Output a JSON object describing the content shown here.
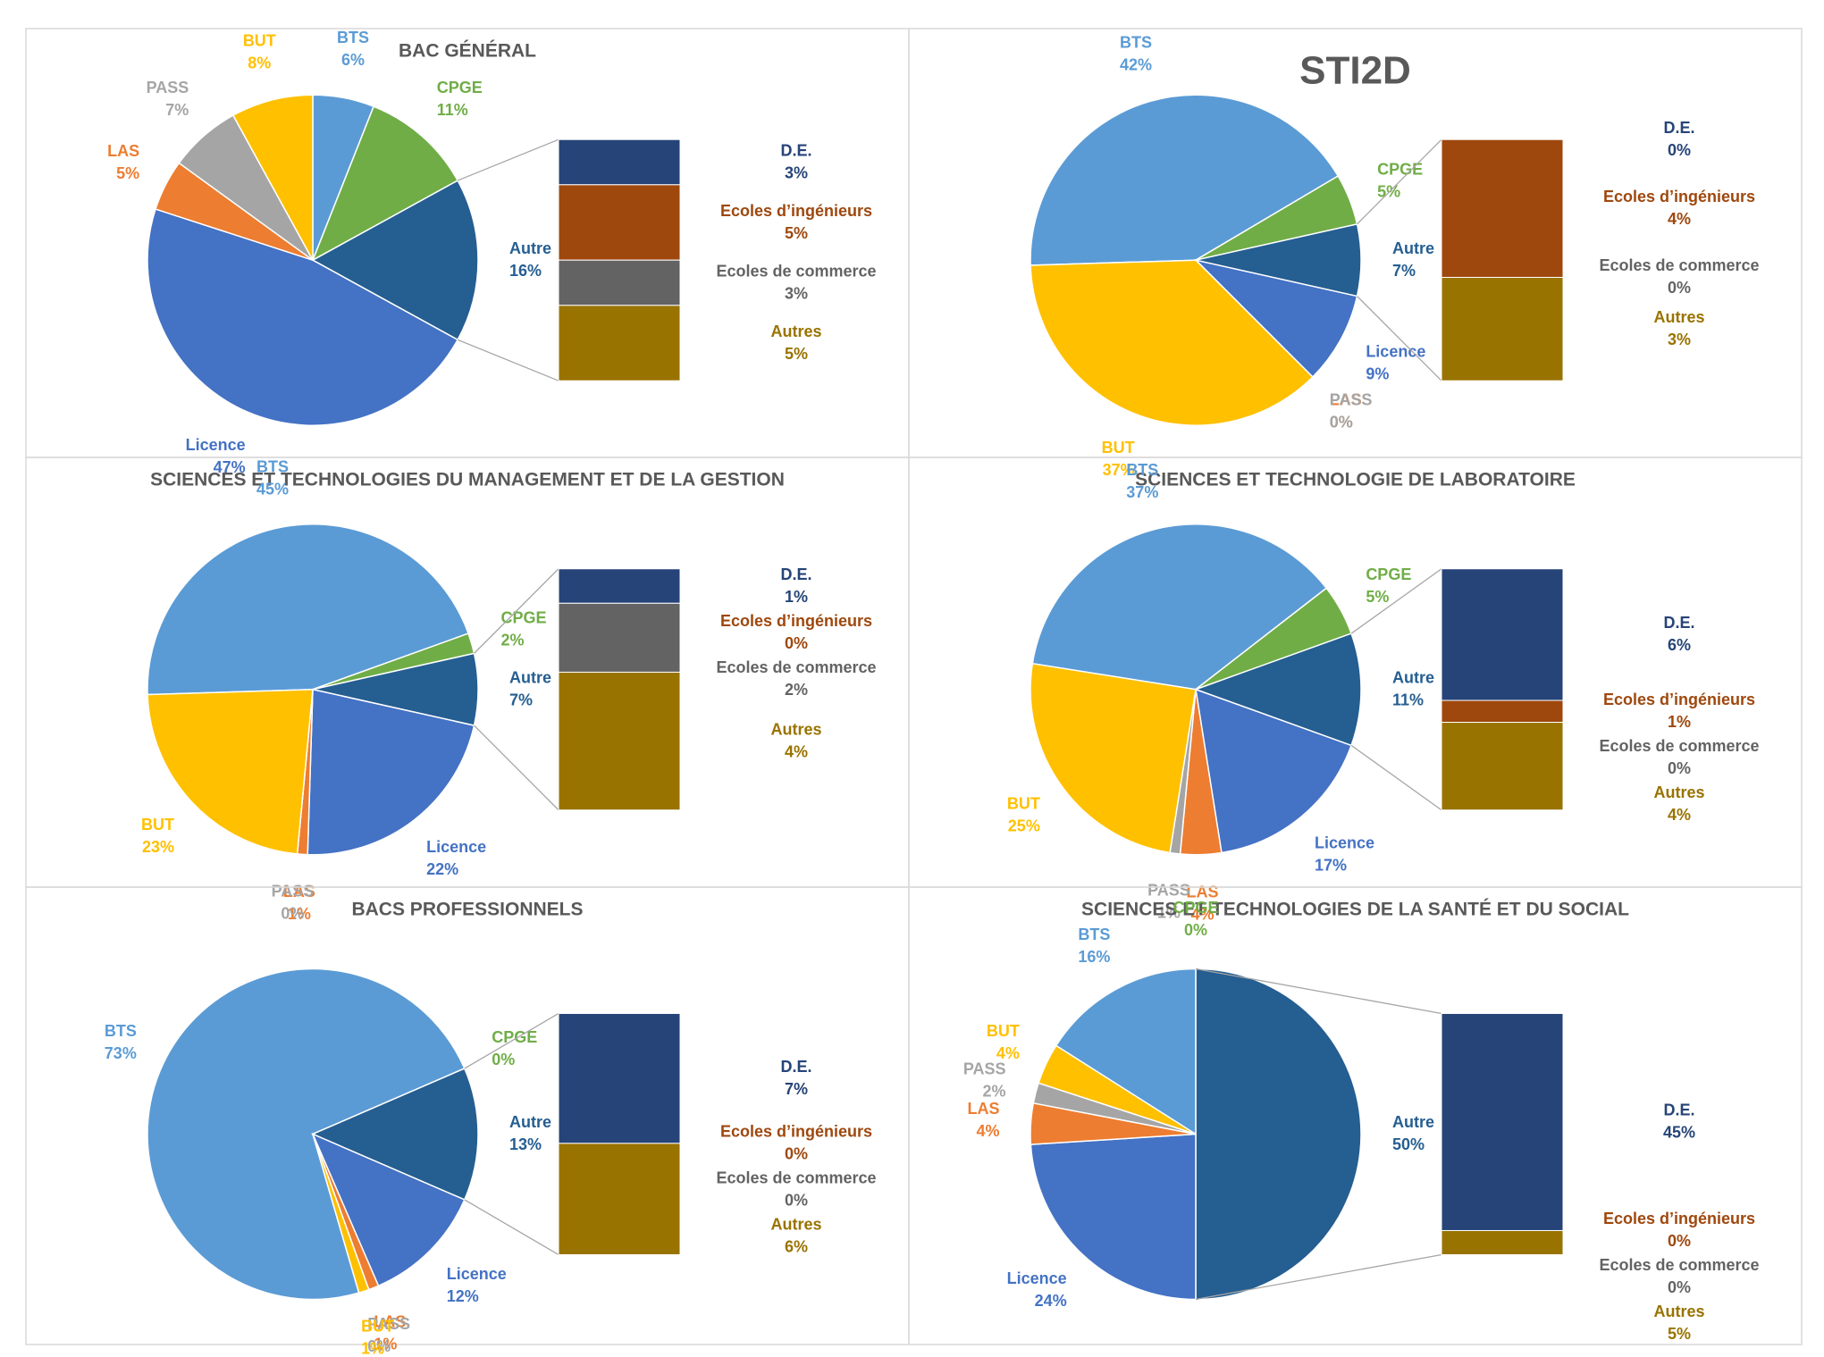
{
  "chart_data": [
    {
      "type": "pie-of-bar",
      "title": "BAC GÉNÉRAL",
      "categories": [
        "BTS",
        "CPGE",
        "Autre",
        "Licence",
        "LAS",
        "PASS",
        "BUT"
      ],
      "values": [
        6,
        11,
        16,
        47,
        5,
        7,
        8
      ],
      "value_labels": [
        "6%",
        "11%",
        "16%",
        "47%",
        "5%",
        "7%",
        "8%"
      ],
      "colors": [
        "#5b9bd5",
        "#70ad47",
        "#255e91",
        "#4472c4",
        "#ed7d31",
        "#a5a5a5",
        "#ffc000"
      ],
      "bar_categories": [
        "D.E.",
        "Ecoles d’ingénieurs",
        "Ecoles de commerce",
        "Autres"
      ],
      "bar_values": [
        3,
        5,
        3,
        5
      ],
      "bar_value_labels": [
        "3%",
        "5%",
        "3%",
        "5%"
      ],
      "bar_colors": [
        "#264478",
        "#9e480e",
        "#636363",
        "#997300"
      ]
    },
    {
      "type": "pie-of-bar",
      "title": "STI2D",
      "title_color": "#ff0000",
      "categories": [
        "BTS",
        "CPGE",
        "Autre",
        "Licence",
        "LAS",
        "PASS",
        "BUT"
      ],
      "values": [
        42,
        5,
        7,
        9,
        0,
        0,
        37
      ],
      "value_labels": [
        "42%",
        "5%",
        "7%",
        "9%",
        "0%",
        "0%",
        "37%"
      ],
      "colors": [
        "#5b9bd5",
        "#70ad47",
        "#255e91",
        "#4472c4",
        "#ed7d31",
        "#a5a5a5",
        "#ffc000"
      ],
      "bar_categories": [
        "D.E.",
        "Ecoles d’ingénieurs",
        "Ecoles de commerce",
        "Autres"
      ],
      "bar_values": [
        0,
        4,
        0,
        3
      ],
      "bar_value_labels": [
        "0%",
        "4%",
        "0%",
        "3%"
      ],
      "bar_colors": [
        "#264478",
        "#9e480e",
        "#636363",
        "#997300"
      ]
    },
    {
      "type": "pie-of-bar",
      "title": "SCIENCES ET TECHNOLOGIES DU MANAGEMENT ET DE LA GESTION",
      "categories": [
        "BTS",
        "CPGE",
        "Autre",
        "Licence",
        "LAS",
        "PASS",
        "BUT"
      ],
      "values": [
        45,
        2,
        7,
        22,
        1,
        0,
        23
      ],
      "value_labels": [
        "45%",
        "2%",
        "7%",
        "22%",
        "1%",
        "0%",
        "23%"
      ],
      "colors": [
        "#5b9bd5",
        "#70ad47",
        "#255e91",
        "#4472c4",
        "#ed7d31",
        "#a5a5a5",
        "#ffc000"
      ],
      "bar_categories": [
        "D.E.",
        "Ecoles d’ingénieurs",
        "Ecoles de commerce",
        "Autres"
      ],
      "bar_values": [
        1,
        0,
        2,
        4
      ],
      "bar_value_labels": [
        "1%",
        "0%",
        "2%",
        "4%"
      ],
      "bar_colors": [
        "#264478",
        "#9e480e",
        "#636363",
        "#997300"
      ]
    },
    {
      "type": "pie-of-bar",
      "title": "SCIENCES ET TECHNOLOGIE DE LABORATOIRE",
      "categories": [
        "BTS",
        "CPGE",
        "Autre",
        "Licence",
        "LAS",
        "PASS",
        "BUT"
      ],
      "values": [
        37,
        5,
        11,
        17,
        4,
        1,
        25
      ],
      "value_labels": [
        "37%",
        "5%",
        "11%",
        "17%",
        "4%",
        "1%",
        "25%"
      ],
      "colors": [
        "#5b9bd5",
        "#70ad47",
        "#255e91",
        "#4472c4",
        "#ed7d31",
        "#a5a5a5",
        "#ffc000"
      ],
      "bar_categories": [
        "D.E.",
        "Ecoles d’ingénieurs",
        "Ecoles de commerce",
        "Autres"
      ],
      "bar_values": [
        6,
        1,
        0,
        4
      ],
      "bar_value_labels": [
        "6%",
        "1%",
        "0%",
        "4%"
      ],
      "bar_colors": [
        "#264478",
        "#9e480e",
        "#636363",
        "#997300"
      ]
    },
    {
      "type": "pie-of-bar",
      "title": "BACS PROFESSIONNELS",
      "categories": [
        "BTS",
        "CPGE",
        "Autre",
        "Licence",
        "LAS",
        "PASS",
        "BUT"
      ],
      "values": [
        73,
        0,
        13,
        12,
        1,
        0,
        1
      ],
      "value_labels": [
        "73%",
        "0%",
        "13%",
        "12%",
        "1%",
        "0%",
        "1%"
      ],
      "colors": [
        "#5b9bd5",
        "#70ad47",
        "#255e91",
        "#4472c4",
        "#ed7d31",
        "#a5a5a5",
        "#ffc000"
      ],
      "bar_categories": [
        "D.E.",
        "Ecoles d’ingénieurs",
        "Ecoles de commerce",
        "Autres"
      ],
      "bar_values": [
        7,
        0,
        0,
        6
      ],
      "bar_value_labels": [
        "7%",
        "0%",
        "0%",
        "6%"
      ],
      "bar_colors": [
        "#264478",
        "#9e480e",
        "#636363",
        "#997300"
      ]
    },
    {
      "type": "pie-of-bar",
      "title": "SCIENCES ET TECHNOLOGIES DE LA SANTÉ ET DU SOCIAL",
      "categories": [
        "CPGE",
        "Autre",
        "Licence",
        "LAS",
        "PASS",
        "BUT",
        "BTS"
      ],
      "values": [
        0,
        50,
        24,
        4,
        2,
        4,
        16
      ],
      "value_labels": [
        "0%",
        "50%",
        "24%",
        "4%",
        "2%",
        "4%",
        "16%"
      ],
      "colors": [
        "#70ad47",
        "#255e91",
        "#4472c4",
        "#ed7d31",
        "#a5a5a5",
        "#ffc000",
        "#5b9bd5"
      ],
      "bar_categories": [
        "D.E.",
        "Ecoles d’ingénieurs",
        "Ecoles de commerce",
        "Autres"
      ],
      "bar_values": [
        45,
        0,
        0,
        5
      ],
      "bar_value_labels": [
        "45%",
        "0%",
        "0%",
        "5%"
      ],
      "bar_colors": [
        "#264478",
        "#9e480e",
        "#636363",
        "#997300"
      ]
    }
  ]
}
